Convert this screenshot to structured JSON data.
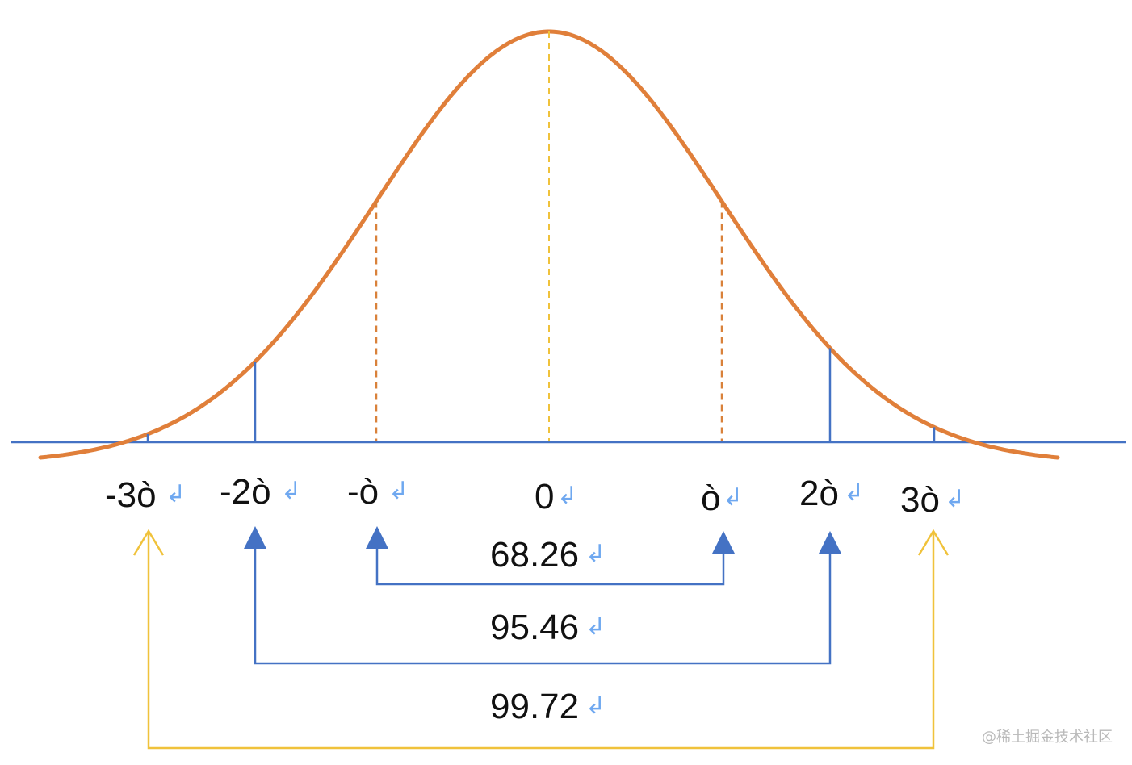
{
  "diagram": {
    "tick_labels": [
      {
        "text": "-3ò",
        "mark": "↲"
      },
      {
        "text": "-2ò",
        "mark": "↲"
      },
      {
        "text": "-ò",
        "mark": "↲"
      },
      {
        "text": "0",
        "mark": "↲"
      },
      {
        "text": "ò",
        "mark": "↲"
      },
      {
        "text": "2ò",
        "mark": "↲"
      },
      {
        "text": "3ò",
        "mark": "↲"
      }
    ],
    "ranges": [
      {
        "value": "68.26",
        "mark": "↲"
      },
      {
        "value": "95.46",
        "mark": "↲"
      },
      {
        "value": "99.72",
        "mark": "↲"
      }
    ],
    "watermark": "@稀土掘金技术社区"
  },
  "colors": {
    "curve": "#e07f3a",
    "axis": "#4472c4",
    "sigma1_dashed": "#d9813a",
    "center_dashed": "#f0c23b",
    "range_1_2": "#4472c4",
    "range_3": "#f0c23b",
    "return_mark": "#6fa8f0"
  }
}
